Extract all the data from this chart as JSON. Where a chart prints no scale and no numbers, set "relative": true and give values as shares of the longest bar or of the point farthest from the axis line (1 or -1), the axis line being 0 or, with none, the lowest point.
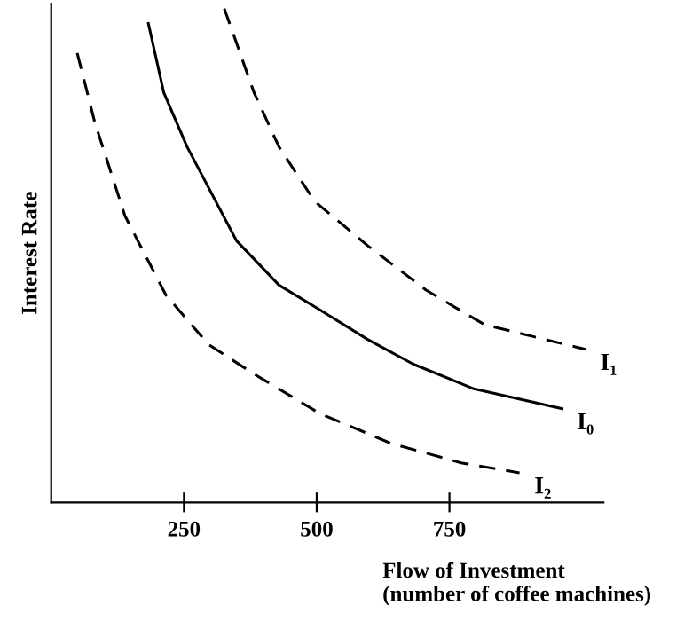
{
  "chart_data": {
    "type": "line",
    "relative": true,
    "xlabel": "Flow of Investment\n(number of coffee machines)",
    "ylabel": "Interest Rate",
    "xlim": [
      0,
      1040
    ],
    "xticks": [
      250,
      500,
      750
    ],
    "tick_labels": "x",
    "grid": false,
    "legend": false,
    "marker": "none",
    "series": [
      {
        "name": "I₁",
        "color": "#000000",
        "line_style": "dashed",
        "x": [
          326,
          382,
          429,
          496,
          596,
          706,
          816,
          1006
        ],
        "values": [
          1.0,
          0.83,
          0.72,
          0.61,
          0.52,
          0.43,
          0.36,
          0.31
        ]
      },
      {
        "name": "I₀",
        "color": "#000000",
        "line_style": "solid",
        "x": [
          183,
          212,
          256,
          349,
          429,
          506,
          596,
          682,
          796,
          962
        ],
        "values": [
          0.97,
          0.83,
          0.72,
          0.53,
          0.44,
          0.39,
          0.33,
          0.28,
          0.23,
          0.19
        ]
      },
      {
        "name": "I₂",
        "color": "#000000",
        "line_style": "dashed",
        "x": [
          49,
          82,
          139,
          216,
          296,
          382,
          506,
          639,
          772,
          882
        ],
        "values": [
          0.91,
          0.77,
          0.58,
          0.42,
          0.32,
          0.26,
          0.18,
          0.12,
          0.08,
          0.06
        ]
      }
    ]
  }
}
